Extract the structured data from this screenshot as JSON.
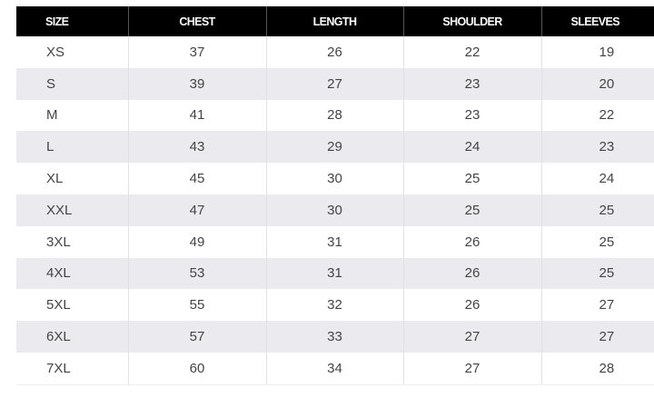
{
  "table": {
    "headers": [
      "SIZE",
      "CHEST",
      "LENGTH",
      "SHOULDER",
      "SLEEVES"
    ],
    "rows": [
      [
        "XS",
        "37",
        "26",
        "22",
        "19"
      ],
      [
        "S",
        "39",
        "27",
        "23",
        "20"
      ],
      [
        "M",
        "41",
        "28",
        "23",
        "22"
      ],
      [
        "L",
        "43",
        "29",
        "24",
        "23"
      ],
      [
        "XL",
        "45",
        "30",
        "25",
        "24"
      ],
      [
        "XXL",
        "47",
        "30",
        "25",
        "25"
      ],
      [
        "3XL",
        "49",
        "31",
        "26",
        "25"
      ],
      [
        "4XL",
        "53",
        "31",
        "26",
        "25"
      ],
      [
        "5XL",
        "55",
        "32",
        "26",
        "27"
      ],
      [
        "6XL",
        "57",
        "33",
        "27",
        "27"
      ],
      [
        "7XL",
        "60",
        "34",
        "27",
        "28"
      ]
    ],
    "colors": {
      "header_bg": "#000000",
      "header_text": "#ffffff",
      "alt_row": "#ebebef",
      "cell_text": "#444444"
    }
  }
}
